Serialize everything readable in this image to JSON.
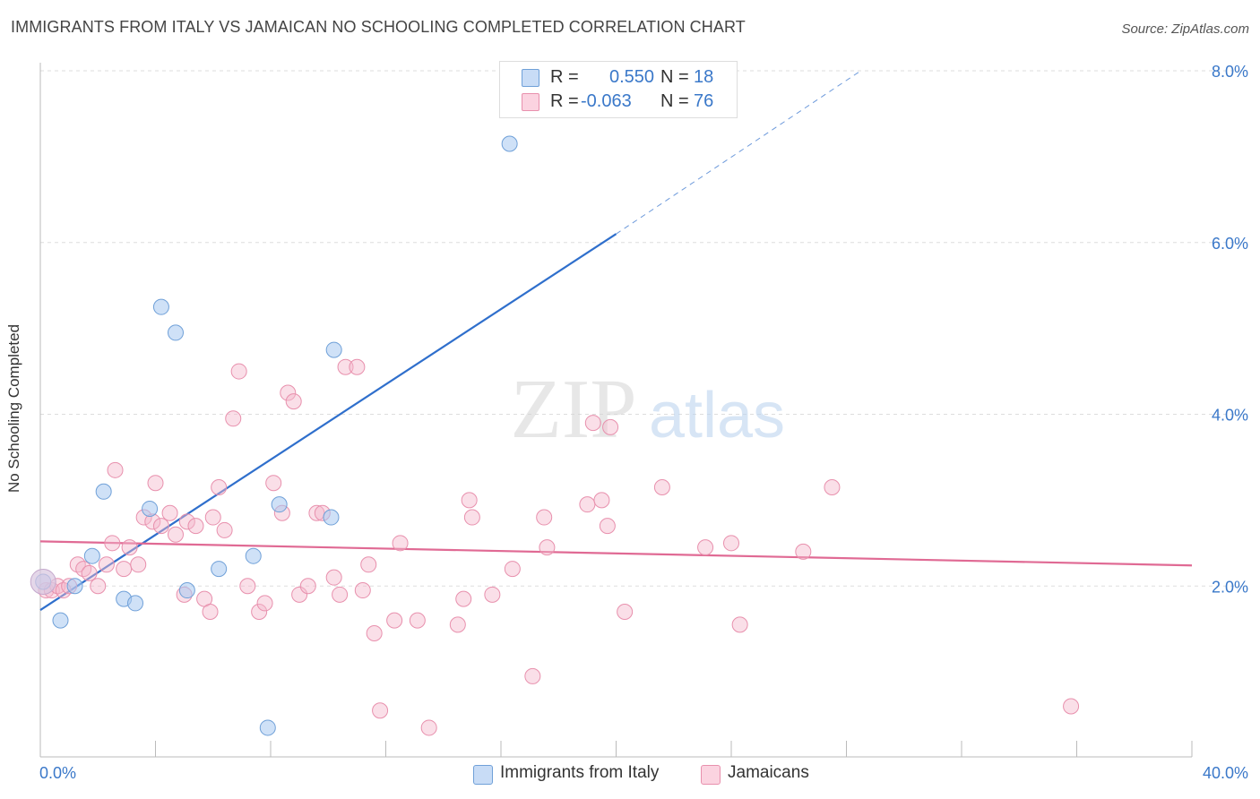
{
  "title": "IMMIGRANTS FROM ITALY VS JAMAICAN NO SCHOOLING COMPLETED CORRELATION CHART",
  "source": "Source: ZipAtlas.com",
  "watermark": {
    "zip": "ZIP",
    "atlas": "atlas"
  },
  "legend": {
    "items": [
      {
        "r_label": "R =",
        "r_value": "0.550",
        "n_label": "N =",
        "n_value": "18",
        "color": "#a8c8f0"
      },
      {
        "r_label": "R =",
        "r_value": "-0.063",
        "n_label": "N =",
        "n_value": "76",
        "color": "#f5b8cc"
      }
    ]
  },
  "bottom_legend": [
    "Immigrants from Italy",
    "Jamaicans"
  ],
  "colors": {
    "blue_fill": "#a8c8f0",
    "blue_stroke": "#6fa0d8",
    "blue_line": "#2f6fcc",
    "pink_fill": "#f5b8cc",
    "pink_stroke": "#e890ad",
    "pink_line": "#e06a94",
    "tick_label": "#3a78c9",
    "grid": "#dddddd"
  },
  "chart_data": {
    "type": "scatter",
    "title": "IMMIGRANTS FROM ITALY VS JAMAICAN NO SCHOOLING COMPLETED CORRELATION CHART",
    "xlabel": "",
    "ylabel": "No Schooling Completed",
    "xlim": [
      0,
      40
    ],
    "ylim": [
      0,
      8.2
    ],
    "x_tick_labels": [
      "0.0%",
      "40.0%"
    ],
    "y_ticks": [
      2,
      4,
      6,
      8
    ],
    "y_tick_labels": [
      "2.0%",
      "4.0%",
      "6.0%",
      "8.0%"
    ],
    "grid": true,
    "series": [
      {
        "name": "Immigrants from Italy",
        "color": "#a8c8f0",
        "points": [
          [
            0.1,
            2.05
          ],
          [
            0.7,
            1.6
          ],
          [
            1.2,
            2.0
          ],
          [
            1.8,
            2.35
          ],
          [
            2.2,
            3.1
          ],
          [
            2.9,
            1.85
          ],
          [
            3.3,
            1.8
          ],
          [
            3.8,
            2.9
          ],
          [
            4.2,
            5.25
          ],
          [
            4.7,
            4.95
          ],
          [
            5.1,
            1.95
          ],
          [
            6.2,
            2.2
          ],
          [
            7.4,
            2.35
          ],
          [
            7.9,
            0.35
          ],
          [
            8.3,
            2.95
          ],
          [
            10.1,
            2.8
          ],
          [
            10.2,
            4.75
          ],
          [
            16.3,
            7.15
          ]
        ],
        "trend": {
          "x": [
            0,
            20
          ],
          "y": [
            1.72,
            6.1
          ],
          "dashed_to": [
            28.5,
            8.0
          ]
        }
      },
      {
        "name": "Jamaicans",
        "color": "#f5b8cc",
        "points": [
          [
            0.2,
            1.95
          ],
          [
            0.4,
            1.95
          ],
          [
            0.6,
            2.0
          ],
          [
            0.8,
            1.95
          ],
          [
            1.0,
            2.0
          ],
          [
            1.3,
            2.25
          ],
          [
            1.5,
            2.2
          ],
          [
            1.7,
            2.15
          ],
          [
            2.0,
            2.0
          ],
          [
            2.3,
            2.25
          ],
          [
            2.5,
            2.5
          ],
          [
            2.6,
            3.35
          ],
          [
            2.9,
            2.2
          ],
          [
            3.1,
            2.45
          ],
          [
            3.4,
            2.25
          ],
          [
            3.6,
            2.8
          ],
          [
            3.9,
            2.75
          ],
          [
            4.0,
            3.2
          ],
          [
            4.2,
            2.7
          ],
          [
            4.5,
            2.85
          ],
          [
            4.7,
            2.6
          ],
          [
            5.0,
            1.9
          ],
          [
            5.1,
            2.75
          ],
          [
            5.4,
            2.7
          ],
          [
            5.7,
            1.85
          ],
          [
            5.9,
            1.7
          ],
          [
            6.0,
            2.8
          ],
          [
            6.2,
            3.15
          ],
          [
            6.4,
            2.65
          ],
          [
            6.7,
            3.95
          ],
          [
            6.9,
            4.5
          ],
          [
            7.2,
            2.0
          ],
          [
            7.6,
            1.7
          ],
          [
            7.8,
            1.8
          ],
          [
            8.1,
            3.2
          ],
          [
            8.4,
            2.85
          ],
          [
            8.6,
            4.25
          ],
          [
            8.8,
            4.15
          ],
          [
            9.0,
            1.9
          ],
          [
            9.3,
            2.0
          ],
          [
            9.6,
            2.85
          ],
          [
            9.8,
            2.85
          ],
          [
            10.2,
            2.1
          ],
          [
            10.4,
            1.9
          ],
          [
            10.6,
            4.55
          ],
          [
            11.0,
            4.55
          ],
          [
            11.2,
            1.95
          ],
          [
            11.4,
            2.25
          ],
          [
            11.6,
            1.45
          ],
          [
            11.8,
            0.55
          ],
          [
            12.3,
            1.6
          ],
          [
            12.5,
            2.5
          ],
          [
            13.1,
            1.6
          ],
          [
            13.5,
            0.35
          ],
          [
            14.5,
            1.55
          ],
          [
            14.7,
            1.85
          ],
          [
            14.9,
            3.0
          ],
          [
            15.0,
            2.8
          ],
          [
            15.7,
            1.9
          ],
          [
            16.4,
            2.2
          ],
          [
            17.1,
            0.95
          ],
          [
            17.5,
            2.8
          ],
          [
            17.6,
            2.45
          ],
          [
            19.0,
            2.95
          ],
          [
            19.2,
            3.9
          ],
          [
            19.5,
            3.0
          ],
          [
            19.7,
            2.7
          ],
          [
            19.8,
            3.85
          ],
          [
            20.3,
            1.7
          ],
          [
            21.6,
            3.15
          ],
          [
            23.1,
            2.45
          ],
          [
            24.0,
            2.5
          ],
          [
            24.3,
            1.55
          ],
          [
            26.5,
            2.4
          ],
          [
            27.5,
            3.15
          ],
          [
            35.8,
            0.6
          ]
        ],
        "trend": {
          "x": [
            0,
            40
          ],
          "y": [
            2.52,
            2.24
          ]
        }
      }
    ]
  }
}
